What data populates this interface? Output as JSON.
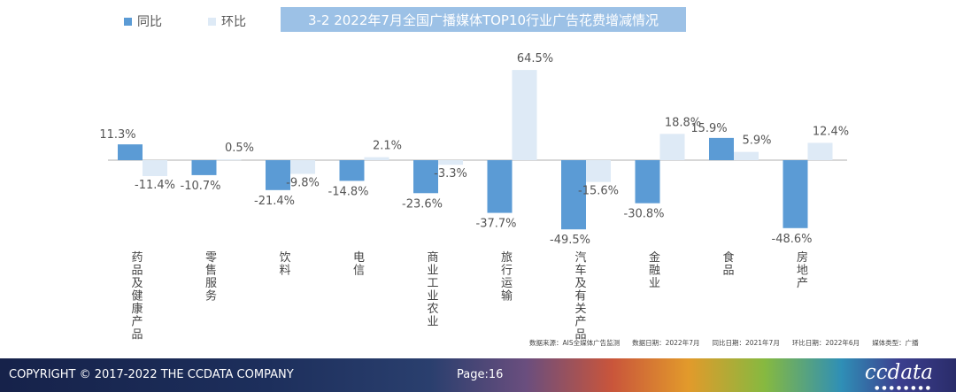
{
  "title": "3-2 2022年7月全国广播媒体TOP10行业广告花费增减情况",
  "legend": {
    "yoy_label": "同比",
    "mom_label": "环比"
  },
  "colors": {
    "yoy": "#5b9bd5",
    "mom": "#deeaf6",
    "title_bg": "#9cc1e6"
  },
  "chart_data": {
    "type": "bar",
    "categories": [
      "药品及健康产品",
      "零售服务",
      "饮料",
      "电信",
      "商业工业农业",
      "旅行运输",
      "汽车及有关产品",
      "金融业",
      "食品",
      "房地产"
    ],
    "series": [
      {
        "name": "同比",
        "values": [
          11.3,
          -10.7,
          -21.4,
          -14.8,
          -23.6,
          -37.7,
          -49.5,
          -30.8,
          15.9,
          -48.6
        ]
      },
      {
        "name": "环比",
        "values": [
          -11.4,
          0.5,
          -9.8,
          2.1,
          -3.3,
          64.5,
          -15.6,
          18.8,
          5.9,
          12.4
        ]
      }
    ],
    "value_labels": {
      "yoy": [
        "11.3%",
        "-10.7%",
        "-21.4%",
        "-14.8%",
        "-23.6%",
        "-37.7%",
        "-49.5%",
        "-30.8%",
        "15.9%",
        "-48.6%"
      ],
      "mom": [
        "-11.4%",
        "0.5%",
        "-9.8%",
        "2.1%",
        "-3.3%",
        "64.5%",
        "-15.6%",
        "18.8%",
        "5.9%",
        "12.4%"
      ]
    },
    "ylim": [
      -50,
      65
    ],
    "grid": false
  },
  "source": {
    "data_source": "数据来源：AIS全媒体广告监测",
    "data_date": "数据日期：2022年7月",
    "yoy_date": "同比日期：2021年7月",
    "mom_date": "环比日期：2022年6月",
    "media_type": "媒体类型：广播"
  },
  "footer": {
    "copyright": "COPYRIGHT © 2017-2022 THE CCDATA COMPANY",
    "page": "Page:16",
    "logo": "ccdata"
  }
}
